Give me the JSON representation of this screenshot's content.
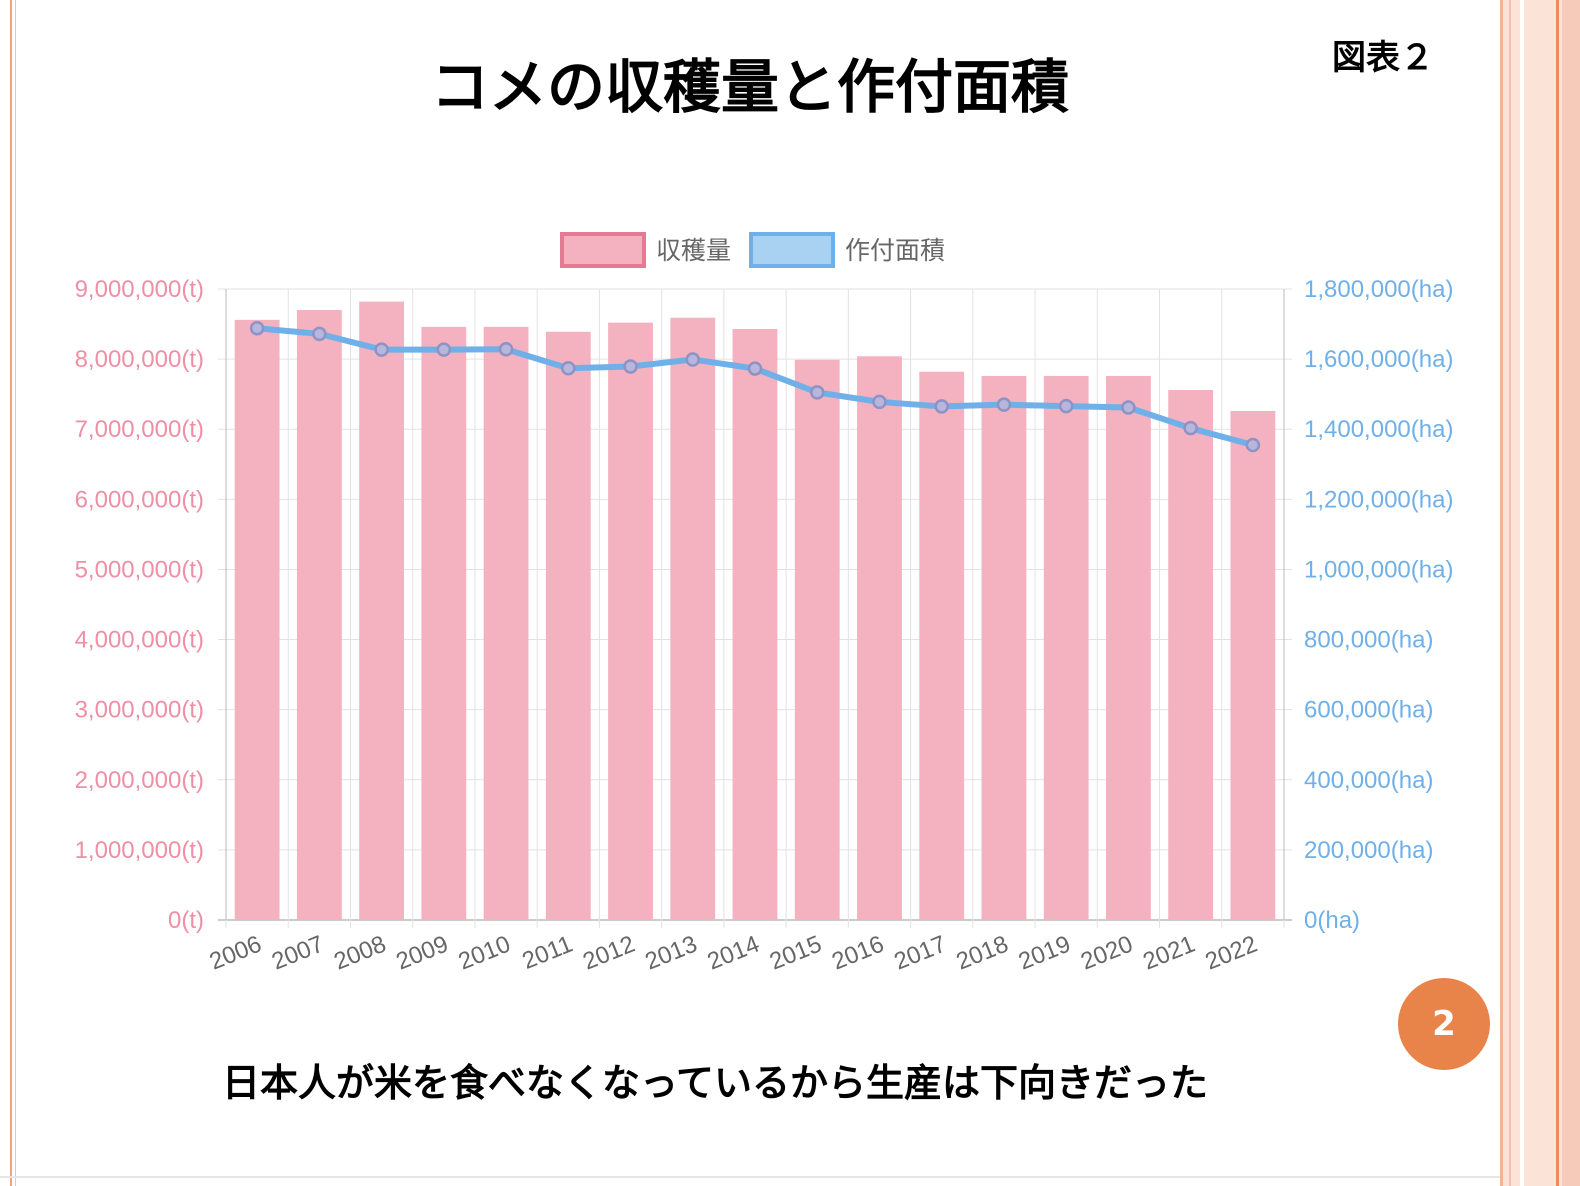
{
  "slide": {
    "title": "コメの収穫量と作付面積",
    "figure_label": "図表２",
    "caption": "日本人が米を食べなくなっているから生産は下向きだった",
    "page_number": "2"
  },
  "colors": {
    "bar_fill": "#f4b1bf",
    "bar_legend_border": "#e57a93",
    "line_color": "#6fb0e8",
    "point_color": "#8f92c4",
    "left_axis_color": "#ef8fa5",
    "right_axis_color": "#6fb0e8",
    "badge": "#e8844a"
  },
  "chart_data": {
    "type": "bar",
    "title": "",
    "categories": [
      "2006",
      "2007",
      "2008",
      "2009",
      "2010",
      "2011",
      "2012",
      "2013",
      "2014",
      "2015",
      "2016",
      "2017",
      "2018",
      "2019",
      "2020",
      "2021",
      "2022"
    ],
    "series": [
      {
        "name": "収穫量",
        "type": "bar",
        "axis": "left",
        "values": [
          8560000,
          8700000,
          8820000,
          8460000,
          8460000,
          8390000,
          8520000,
          8590000,
          8430000,
          7990000,
          8040000,
          7820000,
          7760000,
          7760000,
          7760000,
          7560000,
          7260000
        ]
      },
      {
        "name": "作付面積",
        "type": "line",
        "axis": "right",
        "values": [
          1688000,
          1672000,
          1627000,
          1627000,
          1628000,
          1574000,
          1579000,
          1599000,
          1573000,
          1505000,
          1478000,
          1465000,
          1470000,
          1466000,
          1462000,
          1403000,
          1355000
        ]
      }
    ],
    "y_left": {
      "min": 0,
      "max": 9000000,
      "step": 1000000,
      "ticks": [
        "0(t)",
        "1,000,000(t)",
        "2,000,000(t)",
        "3,000,000(t)",
        "4,000,000(t)",
        "5,000,000(t)",
        "6,000,000(t)",
        "7,000,000(t)",
        "8,000,000(t)",
        "9,000,000(t)"
      ]
    },
    "y_right": {
      "min": 0,
      "max": 1800000,
      "step": 200000,
      "ticks": [
        "0(ha)",
        "200,000(ha)",
        "400,000(ha)",
        "600,000(ha)",
        "800,000(ha)",
        "1,000,000(ha)",
        "1,200,000(ha)",
        "1,400,000(ha)",
        "1,600,000(ha)",
        "1,800,000(ha)"
      ]
    },
    "grid": true,
    "legend": "top-center"
  }
}
